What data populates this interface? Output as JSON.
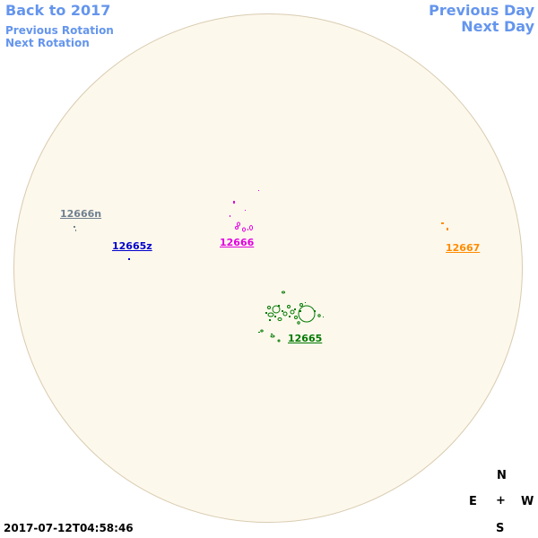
{
  "nav": {
    "back": "Back to 2017",
    "previous_rotation": "Previous Rotation",
    "next_rotation": "Next Rotation",
    "previous_day": "Previous Day",
    "next_day": "Next Day"
  },
  "regions": [
    {
      "id": "12666n",
      "label": "12666n",
      "color": "#708090"
    },
    {
      "id": "12665z",
      "label": "12665z",
      "color": "#0000cd"
    },
    {
      "id": "12666",
      "label": "12666",
      "color": "#e000e0"
    },
    {
      "id": "12667",
      "label": "12667",
      "color": "#ff8c00"
    },
    {
      "id": "12665",
      "label": "12665",
      "color": "#007a00"
    }
  ],
  "compass": {
    "north": "N",
    "south": "S",
    "east": "E",
    "west": "W",
    "center": "+"
  },
  "timestamp": "2017-07-12T04:58:46",
  "colors": {
    "link": "#6495ed",
    "disk": "#fdf8ec"
  }
}
